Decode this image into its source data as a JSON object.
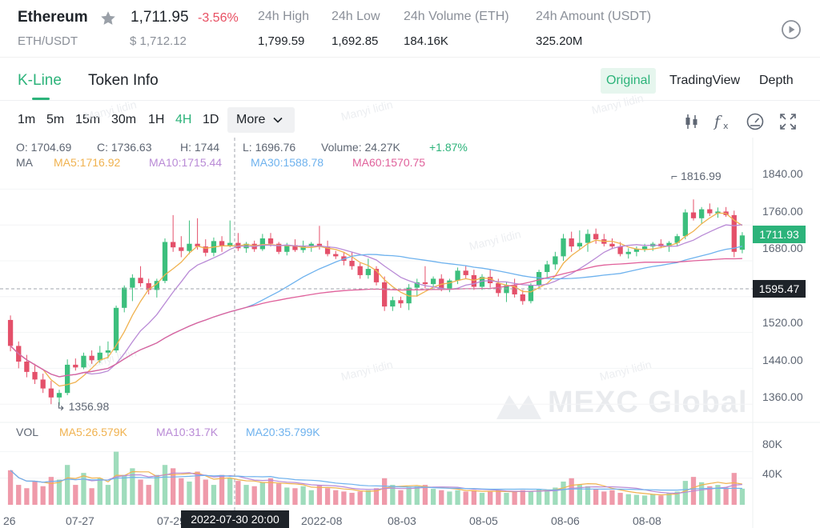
{
  "header": {
    "name": "Ethereum",
    "pair": "ETH/USDT",
    "last_price": "1,711.95",
    "change": "-3.56%",
    "usd_price": "$ 1,712.12",
    "stats": [
      {
        "label": "24h High",
        "value": "1,799.59"
      },
      {
        "label": "24h Low",
        "value": "1,692.85"
      },
      {
        "label": "24h Volume (ETH)",
        "value": "184.16K"
      },
      {
        "label": "24h Amount (USDT)",
        "value": "325.20M"
      }
    ],
    "icons": {
      "favorite": "star-icon",
      "play": "play-circle-icon"
    }
  },
  "tabs": {
    "kline": "K-Line",
    "token_info": "Token Info",
    "views": [
      "Original",
      "TradingView",
      "Depth"
    ]
  },
  "toolbar": {
    "intervals": [
      "1m",
      "5m",
      "15m",
      "30m",
      "1H",
      "4H",
      "1D"
    ],
    "active_interval": "4H",
    "more": "More",
    "icons": [
      "candlestick-icon",
      "function-icon",
      "speedometer-icon",
      "fullscreen-icon"
    ]
  },
  "legend": {
    "open": "O: 1704.69",
    "close": "C: 1736.63",
    "high": "H: 1744",
    "low": "L: 1696.76",
    "volume": "Volume: 24.27K",
    "change": "+1.87%",
    "ma": "MA",
    "ma5": "MA5:1716.92",
    "ma10": "MA10:1715.44",
    "ma30": "MA30:1588.78",
    "ma60": "MA60:1570.75",
    "vol": "VOL",
    "vma5": "MA5:26.579K",
    "vma10": "MA10:31.7K",
    "vma20": "MA20:35.799K"
  },
  "price_tags": {
    "last": "1711.93",
    "cursor": "1595.47",
    "cursor_date": "2022-07-30 20:00"
  },
  "extremes": {
    "high": "1816.99",
    "low": "1356.98"
  },
  "watermark": {
    "brand": "MEXC Global",
    "faint": "Manyi lidin"
  },
  "colors": {
    "up": "#3cbf7d",
    "down": "#e4506a",
    "ma5": "#f0b24f",
    "ma10": "#b98ad6",
    "ma30": "#6eb2ee",
    "ma60": "#e0619b",
    "accent": "#2cb37a"
  },
  "chart_data": {
    "type": "candlestick",
    "interval": "4H",
    "y_ticks": [
      "1840.00",
      "1760.00",
      "1680.00",
      "1600.00",
      "1520.00",
      "1440.00",
      "1360.00"
    ],
    "vol_ticks": [
      "80K",
      "40K"
    ],
    "x_ticks": [
      "26",
      "07-27",
      "07-29",
      "2022-08",
      "08-03",
      "08-05",
      "08-06",
      "08-08"
    ],
    "ylim": [
      1330,
      1880
    ],
    "vol_max": 100,
    "candles": [
      [
        1548,
        1558,
        1478,
        1490,
        52
      ],
      [
        1490,
        1500,
        1440,
        1455,
        30
      ],
      [
        1455,
        1470,
        1420,
        1432,
        25
      ],
      [
        1432,
        1450,
        1405,
        1415,
        35
      ],
      [
        1415,
        1428,
        1385,
        1395,
        28
      ],
      [
        1395,
        1412,
        1360,
        1375,
        42
      ],
      [
        1375,
        1392,
        1356.98,
        1385,
        38
      ],
      [
        1385,
        1460,
        1380,
        1448,
        60
      ],
      [
        1448,
        1462,
        1435,
        1442,
        30
      ],
      [
        1442,
        1475,
        1438,
        1468,
        48
      ],
      [
        1468,
        1480,
        1450,
        1458,
        25
      ],
      [
        1458,
        1490,
        1452,
        1475,
        40
      ],
      [
        1475,
        1500,
        1462,
        1480,
        30
      ],
      [
        1480,
        1580,
        1475,
        1575,
        80
      ],
      [
        1575,
        1625,
        1565,
        1620,
        45
      ],
      [
        1620,
        1650,
        1590,
        1642,
        55
      ],
      [
        1642,
        1668,
        1622,
        1630,
        38
      ],
      [
        1630,
        1640,
        1605,
        1615,
        30
      ],
      [
        1615,
        1640,
        1598,
        1635,
        45
      ],
      [
        1635,
        1730,
        1630,
        1722,
        60
      ],
      [
        1722,
        1782,
        1700,
        1710,
        55
      ],
      [
        1710,
        1735,
        1688,
        1702,
        40
      ],
      [
        1702,
        1770,
        1695,
        1718,
        35
      ],
      [
        1718,
        1775,
        1705,
        1712,
        50
      ],
      [
        1712,
        1728,
        1690,
        1698,
        38
      ],
      [
        1698,
        1732,
        1690,
        1724,
        30
      ],
      [
        1724,
        1735,
        1700,
        1714,
        45
      ],
      [
        1714,
        1770,
        1710,
        1720,
        40
      ],
      [
        1720,
        1742,
        1702,
        1708,
        36
      ],
      [
        1708,
        1722,
        1698,
        1718,
        30
      ],
      [
        1718,
        1725,
        1700,
        1706,
        28
      ],
      [
        1706,
        1740,
        1702,
        1730,
        34
      ],
      [
        1730,
        1742,
        1712,
        1718,
        40
      ],
      [
        1718,
        1722,
        1695,
        1700,
        32
      ],
      [
        1700,
        1720,
        1692,
        1715,
        26
      ],
      [
        1715,
        1728,
        1700,
        1704,
        25
      ],
      [
        1704,
        1725,
        1698,
        1712,
        28
      ],
      [
        1712,
        1722,
        1700,
        1718,
        22
      ],
      [
        1718,
        1758,
        1705,
        1712,
        30
      ],
      [
        1712,
        1725,
        1690,
        1695,
        25
      ],
      [
        1695,
        1702,
        1684,
        1690,
        22
      ],
      [
        1690,
        1700,
        1670,
        1680,
        20
      ],
      [
        1680,
        1700,
        1660,
        1668,
        18
      ],
      [
        1668,
        1675,
        1640,
        1648,
        20
      ],
      [
        1648,
        1685,
        1640,
        1662,
        22
      ],
      [
        1662,
        1668,
        1625,
        1632,
        25
      ],
      [
        1632,
        1645,
        1568,
        1578,
        40
      ],
      [
        1578,
        1600,
        1568,
        1592,
        30
      ],
      [
        1592,
        1600,
        1575,
        1585,
        22
      ],
      [
        1585,
        1628,
        1570,
        1620,
        26
      ],
      [
        1620,
        1640,
        1600,
        1632,
        28
      ],
      [
        1632,
        1668,
        1618,
        1628,
        30
      ],
      [
        1628,
        1645,
        1620,
        1640,
        24
      ],
      [
        1640,
        1650,
        1612,
        1618,
        22
      ],
      [
        1618,
        1640,
        1610,
        1636,
        20
      ],
      [
        1636,
        1665,
        1628,
        1658,
        22
      ],
      [
        1658,
        1670,
        1640,
        1648,
        20
      ],
      [
        1648,
        1660,
        1615,
        1622,
        22
      ],
      [
        1622,
        1650,
        1615,
        1644,
        18
      ],
      [
        1644,
        1660,
        1620,
        1630,
        20
      ],
      [
        1630,
        1640,
        1600,
        1608,
        22
      ],
      [
        1608,
        1632,
        1588,
        1625,
        18
      ],
      [
        1625,
        1640,
        1598,
        1605,
        20
      ],
      [
        1605,
        1615,
        1582,
        1590,
        22
      ],
      [
        1590,
        1630,
        1585,
        1625,
        20
      ],
      [
        1625,
        1660,
        1618,
        1655,
        24
      ],
      [
        1655,
        1680,
        1640,
        1672,
        22
      ],
      [
        1672,
        1700,
        1660,
        1690,
        26
      ],
      [
        1690,
        1740,
        1680,
        1730,
        35
      ],
      [
        1730,
        1745,
        1700,
        1712,
        40
      ],
      [
        1712,
        1748,
        1705,
        1720,
        30
      ],
      [
        1720,
        1750,
        1700,
        1740,
        28
      ],
      [
        1740,
        1752,
        1718,
        1728,
        24
      ],
      [
        1728,
        1740,
        1712,
        1718,
        20
      ],
      [
        1718,
        1730,
        1706,
        1712,
        22
      ],
      [
        1712,
        1722,
        1690,
        1695,
        18
      ],
      [
        1695,
        1708,
        1685,
        1700,
        16
      ],
      [
        1700,
        1712,
        1690,
        1706,
        15
      ],
      [
        1706,
        1718,
        1700,
        1712,
        14
      ],
      [
        1712,
        1722,
        1702,
        1718,
        16
      ],
      [
        1718,
        1728,
        1708,
        1712,
        14
      ],
      [
        1712,
        1724,
        1700,
        1720,
        18
      ],
      [
        1720,
        1740,
        1712,
        1735,
        20
      ],
      [
        1735,
        1795,
        1728,
        1788,
        36
      ],
      [
        1788,
        1816.99,
        1770,
        1775,
        42
      ],
      [
        1775,
        1800,
        1762,
        1795,
        34
      ],
      [
        1795,
        1808,
        1780,
        1786,
        28
      ],
      [
        1786,
        1799,
        1776,
        1790,
        30
      ],
      [
        1790,
        1800,
        1778,
        1782,
        26
      ],
      [
        1782,
        1792,
        1688,
        1700,
        48
      ],
      [
        1704.69,
        1744,
        1696.76,
        1736.63,
        24.27
      ]
    ]
  }
}
